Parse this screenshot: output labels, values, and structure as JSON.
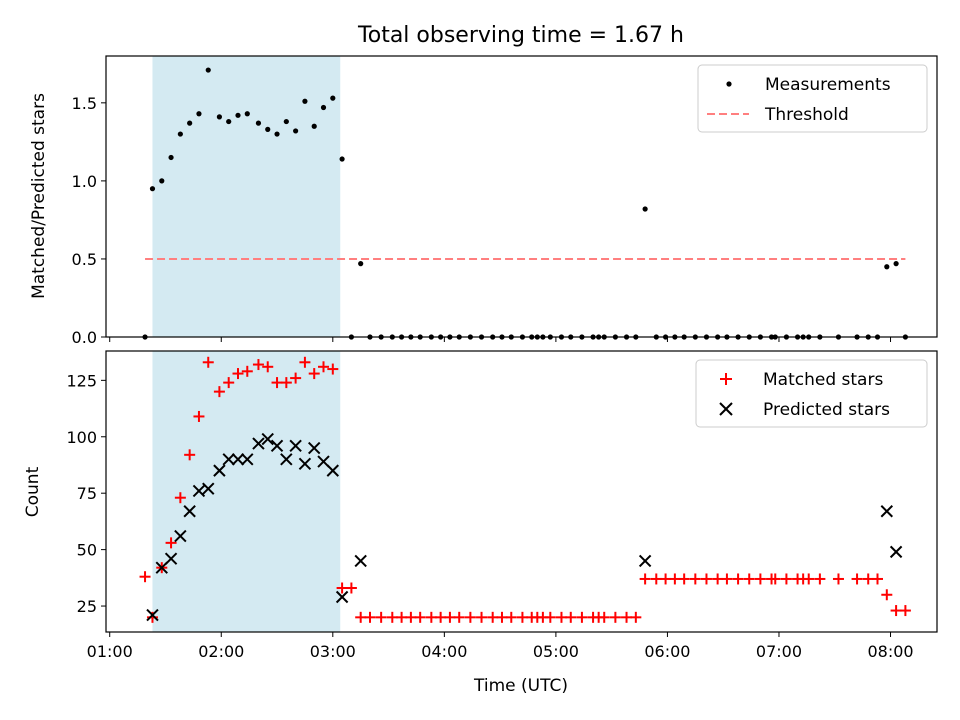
{
  "figure": {
    "title": "Total observing time = 1.67 h",
    "xlabel": "Time (UTC)",
    "xticks": [
      "01:00",
      "02:00",
      "03:00",
      "04:00",
      "05:00",
      "06:00",
      "07:00",
      "08:00"
    ],
    "colors": {
      "shade": "#add8e6",
      "threshold": "#ff7f7f",
      "matched": "#ff0000",
      "predicted": "#000000",
      "measurements": "#000000"
    }
  },
  "chart_data": [
    {
      "type": "scatter",
      "ylabel": "Matched/Predicted stars",
      "ylim": [
        0,
        1.8
      ],
      "yticks": [
        "0.0",
        "0.5",
        "1.0",
        "1.5"
      ],
      "xlim": [
        "00:58",
        "08:25"
      ],
      "shaded_interval": [
        "01:23",
        "03:04"
      ],
      "legend_position": "upper right",
      "series": [
        {
          "name": "Measurements",
          "marker": "dot",
          "points": [
            [
              "01:19",
              0
            ],
            [
              "01:23",
              0.95
            ],
            [
              "01:28",
              1.0
            ],
            [
              "01:33",
              1.15
            ],
            [
              "01:38",
              1.3
            ],
            [
              "01:43",
              1.37
            ],
            [
              "01:48",
              1.43
            ],
            [
              "01:53",
              1.71
            ],
            [
              "01:59",
              1.41
            ],
            [
              "02:04",
              1.38
            ],
            [
              "02:09",
              1.42
            ],
            [
              "02:14",
              1.43
            ],
            [
              "02:20",
              1.37
            ],
            [
              "02:25",
              1.33
            ],
            [
              "02:30",
              1.3
            ],
            [
              "02:35",
              1.38
            ],
            [
              "02:40",
              1.32
            ],
            [
              "02:45",
              1.51
            ],
            [
              "02:50",
              1.35
            ],
            [
              "02:55",
              1.47
            ],
            [
              "03:00",
              1.53
            ],
            [
              "03:05",
              1.14
            ],
            [
              "03:10",
              0
            ],
            [
              "03:15",
              0.47
            ],
            [
              "03:20",
              0
            ],
            [
              "03:26",
              0
            ],
            [
              "03:32",
              0
            ],
            [
              "03:37",
              0
            ],
            [
              "03:42",
              0
            ],
            [
              "03:47",
              0
            ],
            [
              "03:53",
              0
            ],
            [
              "03:58",
              0
            ],
            [
              "04:03",
              0
            ],
            [
              "04:08",
              0
            ],
            [
              "04:14",
              0
            ],
            [
              "04:20",
              0
            ],
            [
              "04:26",
              0
            ],
            [
              "04:31",
              0
            ],
            [
              "04:36",
              0
            ],
            [
              "04:42",
              0
            ],
            [
              "04:47",
              0
            ],
            [
              "04:50",
              0
            ],
            [
              "04:53",
              0
            ],
            [
              "04:57",
              0
            ],
            [
              "05:03",
              0
            ],
            [
              "05:08",
              0
            ],
            [
              "05:14",
              0
            ],
            [
              "05:20",
              0
            ],
            [
              "05:23",
              0
            ],
            [
              "05:26",
              0
            ],
            [
              "05:32",
              0
            ],
            [
              "05:38",
              0
            ],
            [
              "05:43",
              0
            ],
            [
              "05:48",
              0.82
            ],
            [
              "05:54",
              0
            ],
            [
              "05:59",
              0
            ],
            [
              "06:04",
              0
            ],
            [
              "06:09",
              0
            ],
            [
              "06:15",
              0
            ],
            [
              "06:21",
              0
            ],
            [
              "06:27",
              0
            ],
            [
              "06:32",
              0
            ],
            [
              "06:38",
              0
            ],
            [
              "06:44",
              0
            ],
            [
              "06:50",
              0
            ],
            [
              "06:56",
              0
            ],
            [
              "06:58",
              0
            ],
            [
              "07:04",
              0
            ],
            [
              "07:10",
              0
            ],
            [
              "07:13",
              0
            ],
            [
              "07:16",
              0
            ],
            [
              "07:22",
              0
            ],
            [
              "07:32",
              0
            ],
            [
              "07:42",
              0
            ],
            [
              "07:48",
              0
            ],
            [
              "07:53",
              0
            ],
            [
              "07:58",
              0.45
            ],
            [
              "08:03",
              0.47
            ],
            [
              "08:08",
              0
            ]
          ]
        },
        {
          "name": "Threshold",
          "style": "dashed",
          "points": [
            [
              "01:19",
              0.5
            ],
            [
              "08:08",
              0.5
            ]
          ]
        }
      ]
    },
    {
      "type": "scatter",
      "ylabel": "Count",
      "ylim": [
        13.5,
        138
      ],
      "yticks": [
        "25",
        "50",
        "75",
        "100",
        "125"
      ],
      "xlim": [
        "00:58",
        "08:25"
      ],
      "shaded_interval": [
        "01:23",
        "03:04"
      ],
      "legend_position": "upper right",
      "series": [
        {
          "name": "Matched stars",
          "marker": "plus",
          "points": [
            [
              "01:19",
              38
            ],
            [
              "01:23",
              20
            ],
            [
              "01:28",
              42
            ],
            [
              "01:33",
              53
            ],
            [
              "01:38",
              73
            ],
            [
              "01:43",
              92
            ],
            [
              "01:48",
              109
            ],
            [
              "01:53",
              133
            ],
            [
              "01:59",
              120
            ],
            [
              "02:04",
              124
            ],
            [
              "02:09",
              128
            ],
            [
              "02:14",
              129
            ],
            [
              "02:20",
              132
            ],
            [
              "02:25",
              131
            ],
            [
              "02:30",
              124
            ],
            [
              "02:35",
              124
            ],
            [
              "02:40",
              126
            ],
            [
              "02:45",
              133
            ],
            [
              "02:50",
              128
            ],
            [
              "02:55",
              131
            ],
            [
              "03:00",
              130
            ],
            [
              "03:05",
              33
            ],
            [
              "03:10",
              33
            ],
            [
              "03:15",
              20
            ],
            [
              "03:20",
              20
            ],
            [
              "03:26",
              20
            ],
            [
              "03:32",
              20
            ],
            [
              "03:37",
              20
            ],
            [
              "03:42",
              20
            ],
            [
              "03:47",
              20
            ],
            [
              "03:53",
              20
            ],
            [
              "03:58",
              20
            ],
            [
              "04:03",
              20
            ],
            [
              "04:08",
              20
            ],
            [
              "04:14",
              20
            ],
            [
              "04:20",
              20
            ],
            [
              "04:26",
              20
            ],
            [
              "04:31",
              20
            ],
            [
              "04:36",
              20
            ],
            [
              "04:42",
              20
            ],
            [
              "04:47",
              20
            ],
            [
              "04:50",
              20
            ],
            [
              "04:53",
              20
            ],
            [
              "04:57",
              20
            ],
            [
              "05:03",
              20
            ],
            [
              "05:08",
              20
            ],
            [
              "05:14",
              20
            ],
            [
              "05:20",
              20
            ],
            [
              "05:23",
              20
            ],
            [
              "05:26",
              20
            ],
            [
              "05:32",
              20
            ],
            [
              "05:38",
              20
            ],
            [
              "05:43",
              20
            ],
            [
              "05:48",
              37
            ],
            [
              "05:54",
              37
            ],
            [
              "05:59",
              37
            ],
            [
              "06:04",
              37
            ],
            [
              "06:09",
              37
            ],
            [
              "06:15",
              37
            ],
            [
              "06:21",
              37
            ],
            [
              "06:27",
              37
            ],
            [
              "06:32",
              37
            ],
            [
              "06:38",
              37
            ],
            [
              "06:44",
              37
            ],
            [
              "06:50",
              37
            ],
            [
              "06:56",
              37
            ],
            [
              "06:58",
              37
            ],
            [
              "07:04",
              37
            ],
            [
              "07:10",
              37
            ],
            [
              "07:13",
              37
            ],
            [
              "07:16",
              37
            ],
            [
              "07:22",
              37
            ],
            [
              "07:32",
              37
            ],
            [
              "07:42",
              37
            ],
            [
              "07:48",
              37
            ],
            [
              "07:53",
              37
            ],
            [
              "07:58",
              30
            ],
            [
              "08:03",
              23
            ],
            [
              "08:08",
              23
            ]
          ]
        },
        {
          "name": "Predicted stars",
          "marker": "x",
          "points": [
            [
              "01:23",
              21
            ],
            [
              "01:28",
              42
            ],
            [
              "01:33",
              46
            ],
            [
              "01:38",
              56
            ],
            [
              "01:43",
              67
            ],
            [
              "01:48",
              76
            ],
            [
              "01:53",
              77
            ],
            [
              "01:59",
              85
            ],
            [
              "02:04",
              90
            ],
            [
              "02:09",
              90
            ],
            [
              "02:14",
              90
            ],
            [
              "02:20",
              97
            ],
            [
              "02:25",
              99
            ],
            [
              "02:30",
              96
            ],
            [
              "02:35",
              90
            ],
            [
              "02:40",
              96
            ],
            [
              "02:45",
              88
            ],
            [
              "02:50",
              95
            ],
            [
              "02:55",
              89
            ],
            [
              "03:00",
              85
            ],
            [
              "03:05",
              29
            ],
            [
              "03:15",
              45
            ],
            [
              "05:48",
              45
            ],
            [
              "07:58",
              67
            ],
            [
              "08:03",
              49
            ]
          ]
        }
      ]
    }
  ]
}
